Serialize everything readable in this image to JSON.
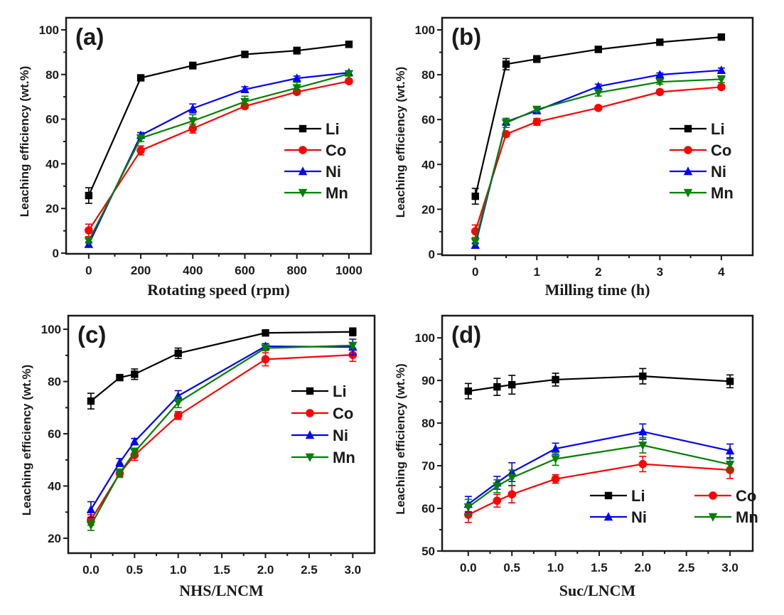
{
  "chart_data": [
    {
      "id": "a",
      "type": "line",
      "panel_label": "(a)",
      "title": "",
      "xlabel": "Rotating speed (rpm)",
      "ylabel": "Leaching efficiency (wt.%)",
      "x": [
        0,
        200,
        400,
        600,
        800,
        1000
      ],
      "xlim": [
        -87,
        1085
      ],
      "ylim": [
        -0.3,
        105.4
      ],
      "xticks": [
        0,
        200,
        400,
        600,
        800,
        1000
      ],
      "xtick_labels": [
        "0",
        "200",
        "400",
        "600",
        "800",
        "1000"
      ],
      "xminor": [
        100,
        300,
        500,
        700,
        900
      ],
      "yticks": [
        0,
        20,
        40,
        60,
        80,
        100
      ],
      "ytick_labels": [
        "0",
        "20",
        "40",
        "60",
        "80",
        "100"
      ],
      "yminor": [
        10,
        30,
        50,
        70,
        90
      ],
      "legend": {
        "placement": "center-right",
        "columns": 1
      },
      "series": [
        {
          "name": "Li",
          "color": "#000000",
          "marker": "square",
          "values": [
            25.8,
            78.5,
            84.0,
            89.0,
            90.7,
            93.5
          ],
          "errors": [
            3.5,
            1.0,
            1.5,
            0.8,
            1.5,
            1.0
          ]
        },
        {
          "name": "Co",
          "color": "#ff0000",
          "marker": "circle",
          "values": [
            10.2,
            46.0,
            55.8,
            65.8,
            72.2,
            77.0
          ],
          "errors": [
            2.8,
            2.0,
            2.0,
            1.0,
            1.0,
            1.0
          ]
        },
        {
          "name": "Ni",
          "color": "#0000ff",
          "marker": "triangle-up",
          "values": [
            4.0,
            52.8,
            64.8,
            73.3,
            78.3,
            80.8
          ],
          "errors": [
            1.0,
            1.2,
            2.0,
            1.2,
            1.0,
            0.8
          ]
        },
        {
          "name": "Mn",
          "color": "#008000",
          "marker": "triangle-down",
          "values": [
            5.5,
            51.5,
            59.2,
            67.8,
            74.0,
            80.3
          ],
          "errors": [
            1.0,
            1.5,
            2.8,
            2.5,
            2.5,
            1.0
          ]
        }
      ]
    },
    {
      "id": "b",
      "type": "line",
      "panel_label": "(b)",
      "title": "",
      "xlabel": "Milling time (h)",
      "ylabel": "Leaching efficiency (wt.%)",
      "x": [
        0,
        0.5,
        1,
        2,
        3,
        4
      ],
      "xlim": [
        -0.54,
        4.51
      ],
      "ylim": [
        -0.5,
        105.4
      ],
      "xticks": [
        0,
        1,
        2,
        3,
        4
      ],
      "xtick_labels": [
        "0",
        "1",
        "2",
        "3",
        "4"
      ],
      "xminor": [
        0.5,
        1.5,
        2.5,
        3.5
      ],
      "yticks": [
        0,
        20,
        40,
        60,
        80,
        100
      ],
      "ytick_labels": [
        "0",
        "20",
        "40",
        "60",
        "80",
        "100"
      ],
      "yminor": [
        10,
        30,
        50,
        70,
        90
      ],
      "legend": {
        "placement": "center-right",
        "columns": 1
      },
      "series": [
        {
          "name": "Li",
          "color": "#000000",
          "marker": "square",
          "values": [
            25.8,
            84.7,
            87.0,
            91.3,
            94.5,
            96.8
          ],
          "errors": [
            3.5,
            2.5,
            1.5,
            1.0,
            0.8,
            0.5
          ]
        },
        {
          "name": "Co",
          "color": "#ff0000",
          "marker": "circle",
          "values": [
            10.2,
            53.5,
            59.0,
            65.2,
            72.3,
            74.5
          ],
          "errors": [
            2.8,
            1.0,
            1.5,
            0.8,
            1.0,
            1.0
          ]
        },
        {
          "name": "Ni",
          "color": "#0000ff",
          "marker": "triangle-up",
          "values": [
            4.0,
            59.0,
            64.0,
            74.8,
            80.0,
            82.0
          ],
          "errors": [
            1.0,
            1.5,
            1.2,
            1.0,
            0.8,
            1.0
          ]
        },
        {
          "name": "Mn",
          "color": "#008000",
          "marker": "triangle-down",
          "values": [
            5.5,
            58.5,
            64.5,
            72.0,
            76.8,
            78.0
          ],
          "errors": [
            1.0,
            2.0,
            1.0,
            1.5,
            1.0,
            1.5
          ]
        }
      ]
    },
    {
      "id": "c",
      "type": "line",
      "panel_label": "(c)",
      "title": "",
      "xlabel": "NHS/LNCM",
      "ylabel": "Leaching efficiency (wt.%)",
      "x": [
        0,
        0.33,
        0.5,
        1.0,
        2.0,
        3.0
      ],
      "xlim": [
        -0.26,
        3.25
      ],
      "ylim": [
        14.3,
        105.2
      ],
      "xticks": [
        0,
        0.5,
        1.0,
        1.5,
        2.0,
        2.5,
        3.0
      ],
      "xtick_labels": [
        "0.0",
        "0.5",
        "1.0",
        "1.5",
        "2.0",
        "2.5",
        "3.0"
      ],
      "xminor": [
        0.25,
        0.75,
        1.25,
        1.75,
        2.25,
        2.75
      ],
      "yticks": [
        20,
        40,
        60,
        80,
        100
      ],
      "ytick_labels": [
        "20",
        "40",
        "60",
        "80",
        "100"
      ],
      "yminor": [
        30,
        50,
        70,
        90
      ],
      "legend": {
        "placement": "center-right",
        "columns": 1
      },
      "series": [
        {
          "name": "Li",
          "color": "#000000",
          "marker": "square",
          "values": [
            72.5,
            81.5,
            82.8,
            90.8,
            98.6,
            99.0
          ],
          "errors": [
            3.0,
            0.8,
            2.0,
            2.0,
            0.8,
            1.5
          ]
        },
        {
          "name": "Co",
          "color": "#ff0000",
          "marker": "circle",
          "values": [
            27.0,
            44.8,
            51.8,
            67.0,
            88.5,
            90.2
          ],
          "errors": [
            2.0,
            1.5,
            2.0,
            1.5,
            2.5,
            2.5
          ]
        },
        {
          "name": "Ni",
          "color": "#0000ff",
          "marker": "triangle-up",
          "values": [
            31.0,
            49.0,
            57.0,
            74.5,
            93.5,
            93.2
          ],
          "errors": [
            3.0,
            1.5,
            1.2,
            2.0,
            1.0,
            3.0
          ]
        },
        {
          "name": "Mn",
          "color": "#008000",
          "marker": "triangle-down",
          "values": [
            25.0,
            45.0,
            53.0,
            72.0,
            92.8,
            93.8
          ],
          "errors": [
            2.0,
            1.5,
            1.5,
            2.0,
            1.0,
            1.0
          ]
        }
      ]
    },
    {
      "id": "d",
      "type": "line",
      "panel_label": "(d)",
      "title": "",
      "xlabel": "Suc/LNCM",
      "ylabel": "Leaching efficiency (wt.%)",
      "x": [
        0,
        0.33,
        0.5,
        1.0,
        2.0,
        3.0
      ],
      "xlim": [
        -0.3,
        3.26
      ],
      "ylim": [
        50,
        105.2
      ],
      "xticks": [
        0,
        0.5,
        1.0,
        1.5,
        2.0,
        2.5,
        3.0
      ],
      "xtick_labels": [
        "0.0",
        "0.5",
        "1.0",
        "1.5",
        "2.0",
        "2.5",
        "3.0"
      ],
      "xminor": [
        0.25,
        0.75,
        1.25,
        1.75,
        2.25,
        2.75
      ],
      "yticks": [
        50,
        60,
        70,
        80,
        90,
        100
      ],
      "ytick_labels": [
        "50",
        "60",
        "70",
        "80",
        "90",
        "100"
      ],
      "yminor": [
        55,
        65,
        75,
        85,
        95
      ],
      "legend": {
        "placement": "lower-right",
        "columns": 2
      },
      "series": [
        {
          "name": "Li",
          "color": "#000000",
          "marker": "square",
          "values": [
            87.5,
            88.5,
            89.0,
            90.2,
            91.0,
            89.8
          ],
          "errors": [
            1.8,
            2.0,
            2.2,
            1.5,
            1.8,
            1.5
          ]
        },
        {
          "name": "Co",
          "color": "#ff0000",
          "marker": "circle",
          "values": [
            58.5,
            61.8,
            63.3,
            66.9,
            70.4,
            69.0
          ],
          "errors": [
            1.8,
            1.5,
            2.0,
            1.0,
            1.8,
            2.0
          ]
        },
        {
          "name": "Ni",
          "color": "#0000ff",
          "marker": "triangle-up",
          "values": [
            61.0,
            66.0,
            68.5,
            74.0,
            78.0,
            73.5
          ],
          "errors": [
            1.8,
            1.5,
            2.2,
            1.3,
            1.8,
            1.6
          ]
        },
        {
          "name": "Mn",
          "color": "#008000",
          "marker": "triangle-down",
          "values": [
            60.3,
            65.2,
            67.2,
            71.6,
            74.8,
            70.3
          ],
          "errors": [
            1.8,
            1.5,
            1.8,
            1.5,
            1.8,
            1.3
          ]
        }
      ]
    }
  ]
}
